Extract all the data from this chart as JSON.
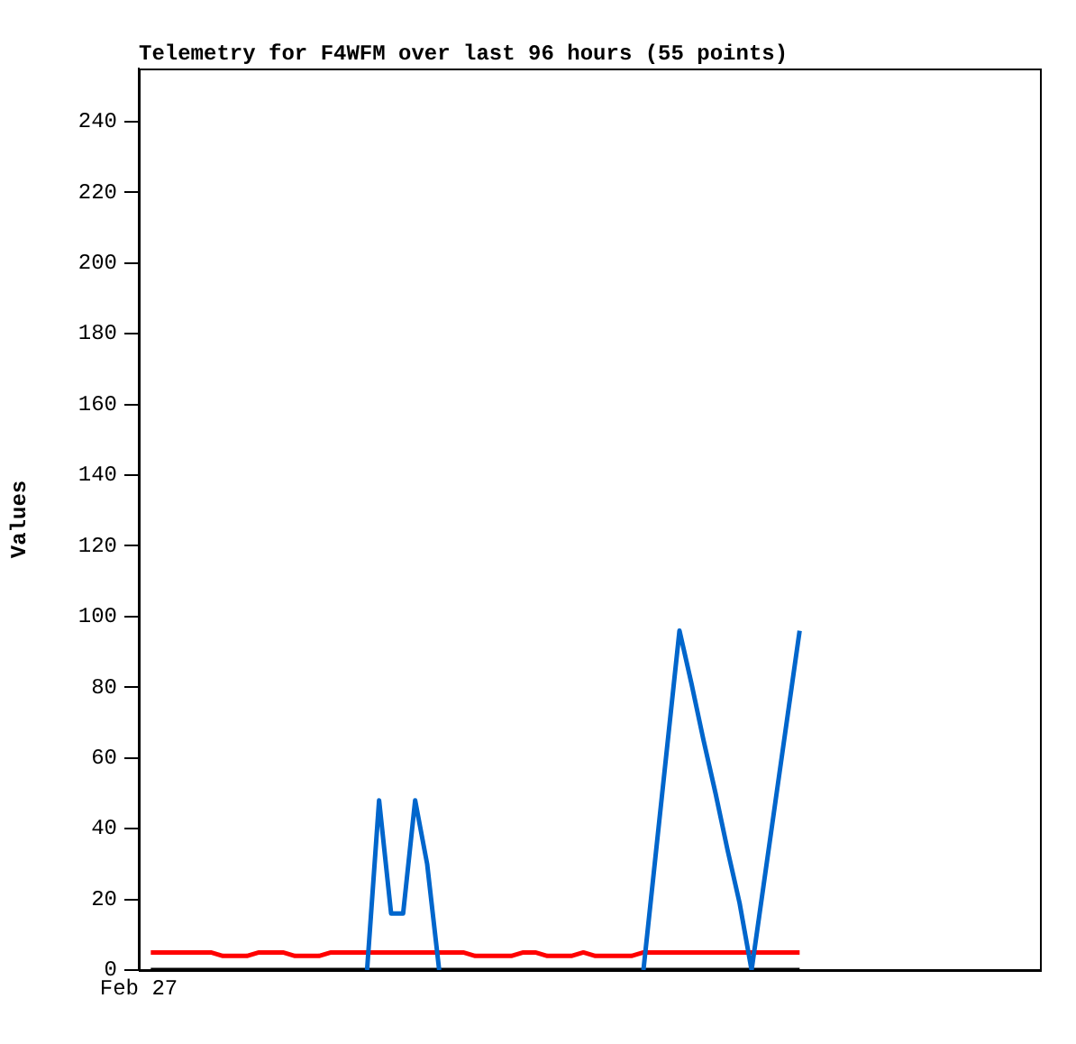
{
  "chart_data": {
    "type": "line",
    "title": "Telemetry for F4WFM over last 96 hours (55 points)",
    "ylabel": "Values",
    "categories": [
      "Feb 27",
      null,
      null,
      null,
      null,
      null,
      null,
      null,
      null,
      null,
      null,
      null,
      null,
      null,
      null,
      null,
      null,
      null,
      null,
      null,
      null,
      null,
      null,
      null,
      null,
      null,
      null,
      null,
      null,
      null,
      null,
      null,
      null,
      null,
      null,
      null,
      null,
      null,
      null,
      null,
      null,
      null,
      null,
      null,
      null,
      null,
      null,
      null,
      null,
      null,
      null,
      null,
      null,
      null,
      null,
      null,
      null,
      null,
      null,
      null,
      null,
      null,
      null,
      null,
      null,
      null,
      null,
      null,
      null,
      null,
      null,
      null,
      null,
      null,
      null,
      null
    ],
    "ylim": [
      0,
      255
    ],
    "yticks": [
      0,
      20,
      40,
      60,
      80,
      100,
      120,
      140,
      160,
      180,
      200,
      220,
      240
    ],
    "grid": false,
    "legend": false,
    "marker": "none",
    "line_style": "solid",
    "series": [
      {
        "color": "#0066cc",
        "values": [
          null,
          null,
          null,
          null,
          null,
          null,
          null,
          null,
          null,
          null,
          null,
          null,
          null,
          null,
          null,
          null,
          null,
          null,
          null,
          0,
          48,
          16,
          16,
          48,
          30,
          0,
          null,
          null,
          null,
          null,
          null,
          null,
          null,
          null,
          null,
          null,
          null,
          null,
          null,
          null,
          null,
          null,
          0,
          32,
          64,
          96,
          81,
          65,
          50,
          34,
          19,
          0,
          24,
          48,
          72,
          96,
          null,
          null,
          null,
          null,
          null,
          null,
          null,
          null,
          null,
          null,
          null,
          null,
          null,
          null,
          null,
          null,
          null,
          null,
          null,
          null
        ]
      },
      {
        "color": "#ff0000",
        "values": [
          null,
          5,
          5,
          5,
          5,
          5,
          5,
          4,
          4,
          4,
          5,
          5,
          5,
          4,
          4,
          4,
          5,
          5,
          5,
          5,
          5,
          5,
          5,
          5,
          5,
          5,
          5,
          5,
          4,
          4,
          4,
          4,
          5,
          5,
          4,
          4,
          4,
          5,
          4,
          4,
          4,
          4,
          5,
          5,
          5,
          5,
          5,
          5,
          5,
          5,
          5,
          5,
          5,
          5,
          5,
          5,
          null,
          null,
          null,
          null,
          null,
          null,
          null,
          null,
          null,
          null,
          null,
          null,
          null,
          null,
          null,
          null,
          null,
          null,
          null,
          null
        ]
      },
      {
        "color": "#000000",
        "values": [
          null,
          0,
          0,
          0,
          0,
          0,
          0,
          0,
          0,
          0,
          0,
          0,
          0,
          0,
          0,
          0,
          0,
          0,
          0,
          0,
          0,
          0,
          0,
          0,
          0,
          0,
          0,
          0,
          0,
          0,
          0,
          0,
          0,
          0,
          0,
          0,
          0,
          0,
          0,
          0,
          0,
          0,
          0,
          0,
          0,
          0,
          0,
          0,
          0,
          0,
          0,
          0,
          0,
          0,
          0,
          0,
          null,
          null,
          null,
          null,
          null,
          null,
          null,
          null,
          null,
          null,
          null,
          null,
          null,
          null,
          null,
          null,
          null,
          null,
          null,
          null
        ]
      }
    ]
  }
}
